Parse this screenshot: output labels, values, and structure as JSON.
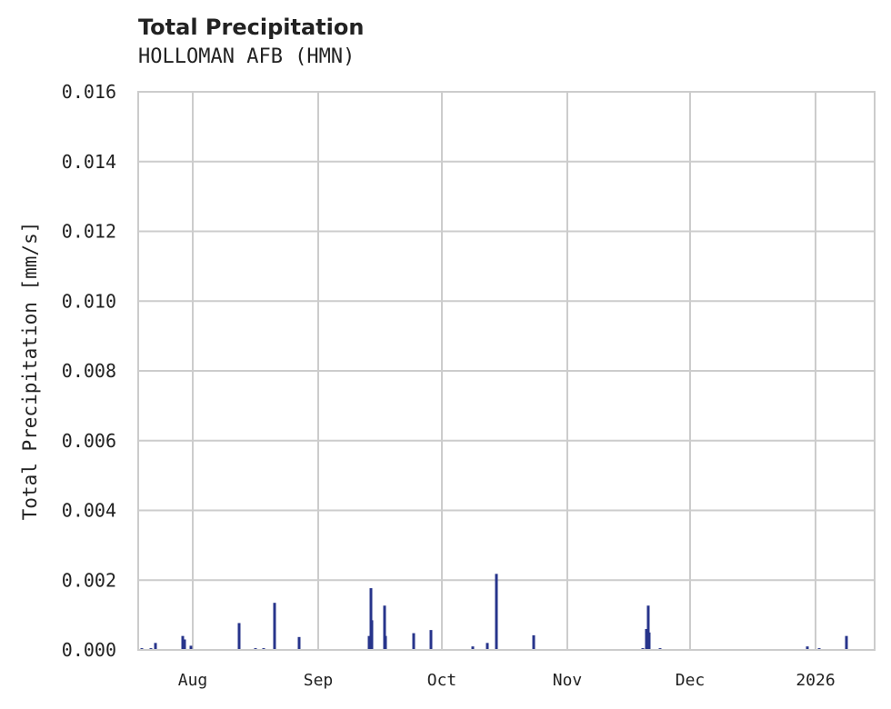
{
  "header": {
    "title": "Total Precipitation",
    "subtitle": "HOLLOMAN AFB (HMN)"
  },
  "colors": {
    "bar": "#27348b",
    "grid": "#cccccc",
    "text": "#222222"
  },
  "chart_data": {
    "type": "bar",
    "title": "Total Precipitation",
    "subtitle": "HOLLOMAN AFB (HMN)",
    "xlabel": "",
    "ylabel": "Total Precipitation [mm/s]",
    "ylim": [
      0,
      0.016
    ],
    "yticks": [
      "0.000",
      "0.002",
      "0.004",
      "0.006",
      "0.008",
      "0.010",
      "0.012",
      "0.014",
      "0.016"
    ],
    "xticks": [
      "Aug",
      "Sep",
      "Oct",
      "Nov",
      "Dec",
      "2026"
    ],
    "xrange": [
      "2025-07-18",
      "2026-01-08"
    ],
    "grid": true,
    "legend": null,
    "x": [
      "2025-07-19",
      "2025-07-21",
      "2025-07-22",
      "2025-07-29",
      "2025-07-29",
      "2025-07-31",
      "2025-08-12",
      "2025-08-16",
      "2025-08-18",
      "2025-08-21",
      "2025-08-27",
      "2025-09-13",
      "2025-09-13",
      "2025-09-14",
      "2025-09-16",
      "2025-09-16",
      "2025-09-23",
      "2025-09-27",
      "2025-10-08",
      "2025-10-11",
      "2025-10-14",
      "2025-10-23",
      "2025-11-19",
      "2025-11-20",
      "2025-11-20",
      "2025-11-21",
      "2025-11-23",
      "2025-12-30",
      "2026-01-02",
      "2026-01-08"
    ],
    "values": [
      5e-05,
      5e-05,
      0.0002,
      0.0004,
      0.0003,
      0.00012,
      0.00077,
      5e-05,
      5e-05,
      0.00135,
      0.00037,
      0.0004,
      0.00177,
      0.00085,
      0.00127,
      0.0004,
      0.00048,
      0.00057,
      0.0001,
      0.0002,
      0.00218,
      0.00042,
      5e-05,
      0.0006,
      0.00127,
      0.0005,
      5e-05,
      0.0001,
      5e-05,
      0.0004
    ],
    "px": [
      156,
      166,
      171,
      201,
      203,
      210,
      263,
      281,
      290,
      302,
      329,
      406,
      408,
      409,
      423,
      424,
      455,
      474,
      520,
      536,
      546,
      587,
      707,
      711,
      713,
      714,
      726,
      888,
      901,
      931
    ]
  }
}
